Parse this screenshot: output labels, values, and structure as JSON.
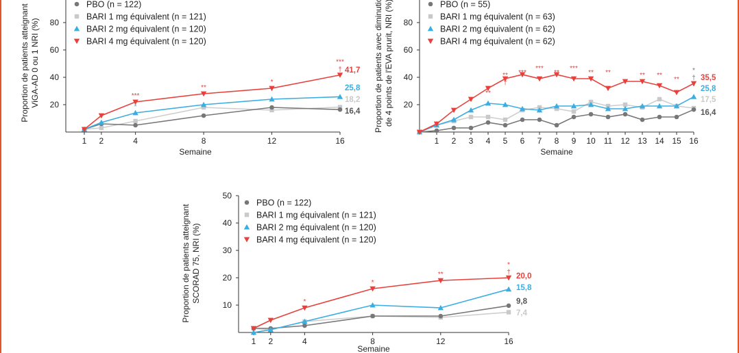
{
  "colors": {
    "pbo": "#777777",
    "bari1": "#c9c9c9",
    "bari2": "#3aaee3",
    "bari4": "#e8413c",
    "frame": "#e2572a"
  },
  "chart_data": [
    {
      "type": "line",
      "ylabel_lines": [
        "Proportion de patients atteignant",
        "ViGA-AD 0 ou 1 NRI (%)"
      ],
      "xlabel": "Semaine",
      "ylim": [
        0,
        100
      ],
      "yticks": [
        20,
        40,
        60,
        80,
        100
      ],
      "yticks_shown": [
        "20",
        "40",
        "60",
        "80"
      ],
      "xticks": [
        1,
        2,
        4,
        8,
        12,
        16
      ],
      "series": [
        {
          "name": "PBO (n = 122)",
          "x": [
            1,
            2,
            4,
            8,
            12,
            16
          ],
          "values": [
            2,
            6,
            5,
            12,
            18,
            16.4
          ],
          "end_label": "16,4"
        },
        {
          "name": "BARI 1 mg équivalent (n = 121)",
          "x": [
            1,
            2,
            4,
            8,
            12,
            16
          ],
          "values": [
            2,
            3,
            8,
            18,
            16,
            18.2
          ],
          "end_label": "18,2"
        },
        {
          "name": "BARI 2 mg équivalent (n = 120)",
          "x": [
            1,
            2,
            4,
            8,
            12,
            16
          ],
          "values": [
            2,
            7,
            14,
            20,
            24,
            25.8
          ],
          "end_label": "25,8"
        },
        {
          "name": "BARI 4 mg équivalent (n = 120)",
          "x": [
            1,
            2,
            4,
            8,
            12,
            16
          ],
          "values": [
            2,
            12,
            22,
            28,
            32,
            41.7
          ],
          "end_label": "41,7"
        }
      ],
      "annotations": [
        {
          "x": 4,
          "y": 22,
          "text": "***",
          "series": "bari4"
        },
        {
          "x": 4,
          "y": 14,
          "text": "*",
          "series": "bari2"
        },
        {
          "x": 8,
          "y": 28,
          "text": "**",
          "series": "bari4"
        },
        {
          "x": 12,
          "y": 32,
          "text": "*",
          "series": "bari4"
        },
        {
          "x": 16,
          "y": 41.7,
          "text": "***",
          "series": "bari4",
          "dagger": true
        }
      ]
    },
    {
      "type": "line",
      "ylabel_lines": [
        "Proportion de patients avec diminution",
        "de 4 points de l'EVA prurit, NRI (%)"
      ],
      "xlabel": "Semaine",
      "ylim": [
        0,
        100
      ],
      "yticks": [
        20,
        40,
        60,
        80,
        100
      ],
      "yticks_shown": [
        "20",
        "40",
        "60",
        "80"
      ],
      "xticks": [
        1,
        2,
        3,
        4,
        5,
        6,
        7,
        8,
        9,
        10,
        11,
        12,
        13,
        14,
        15,
        16
      ],
      "series": [
        {
          "name": "PBO (n = 55)",
          "x": [
            0,
            1,
            2,
            3,
            4,
            5,
            6,
            7,
            8,
            9,
            10,
            11,
            12,
            13,
            14,
            15,
            16
          ],
          "values": [
            0,
            1,
            3,
            3,
            7,
            5,
            9,
            9,
            5,
            11,
            13,
            11,
            13,
            9,
            11,
            11,
            16.4
          ],
          "end_label": "16,4"
        },
        {
          "name": "BARI 1 mg équivalent (n = 63)",
          "x": [
            0,
            1,
            2,
            3,
            4,
            5,
            6,
            7,
            8,
            9,
            10,
            11,
            12,
            13,
            14,
            15,
            16
          ],
          "values": [
            0,
            5,
            8,
            11,
            11,
            9,
            16,
            18,
            17,
            15,
            22,
            19,
            20,
            18,
            24,
            19,
            17.5
          ],
          "end_label": "17,5"
        },
        {
          "name": "BARI 2 mg équivalent (n = 62)",
          "x": [
            0,
            1,
            2,
            3,
            4,
            5,
            6,
            7,
            8,
            9,
            10,
            11,
            12,
            13,
            14,
            15,
            16
          ],
          "values": [
            0,
            5,
            9,
            16,
            21,
            20,
            17,
            16,
            19,
            19,
            20,
            17,
            17,
            19,
            19,
            19,
            25.8
          ],
          "end_label": "25,8"
        },
        {
          "name": "BARI 4 mg équivalent (n = 62)",
          "x": [
            0,
            1,
            2,
            3,
            4,
            5,
            6,
            7,
            8,
            9,
            10,
            11,
            12,
            13,
            14,
            15,
            16
          ],
          "values": [
            0,
            6,
            16,
            24,
            32,
            39,
            42,
            39,
            42,
            39,
            39,
            32,
            37,
            37,
            34,
            29,
            35.5
          ],
          "end_label": "35,5"
        }
      ],
      "annotations": [
        {
          "x": 4,
          "y": 24,
          "text": "**",
          "series": "bari4"
        },
        {
          "x": 5,
          "y": 32,
          "text": "**",
          "series": "bari4",
          "dagger": true
        },
        {
          "x": 6,
          "y": 39,
          "text": "***",
          "series": "bari4"
        },
        {
          "x": 7,
          "y": 42,
          "text": "***",
          "series": "bari4"
        },
        {
          "x": 8,
          "y": 39,
          "text": "**",
          "series": "bari4"
        },
        {
          "x": 9,
          "y": 42,
          "text": "***",
          "series": "bari4"
        },
        {
          "x": 10,
          "y": 39,
          "text": "**",
          "series": "bari4"
        },
        {
          "x": 11,
          "y": 39,
          "text": "**",
          "series": "bari4"
        },
        {
          "x": 12,
          "y": 32,
          "text": "*",
          "series": "bari4"
        },
        {
          "x": 13,
          "y": 37,
          "text": "**",
          "series": "bari4"
        },
        {
          "x": 14,
          "y": 37,
          "text": "**",
          "series": "bari4"
        },
        {
          "x": 15,
          "y": 34,
          "text": "**",
          "series": "bari4"
        },
        {
          "x": 16,
          "y": 29,
          "text": "*",
          "series": "bari4"
        },
        {
          "x": 16,
          "y": 35.5,
          "text": "*",
          "series": "pbo",
          "dagger": true
        }
      ]
    },
    {
      "type": "line",
      "ylabel_lines": [
        "Proportion de patients atteignant",
        "SCORAD 75, NRI (%)"
      ],
      "xlabel": "Semaine",
      "ylim": [
        0,
        50
      ],
      "yticks": [
        10,
        20,
        30,
        40,
        50
      ],
      "yticks_shown": [
        "10",
        "20",
        "30",
        "40",
        "50"
      ],
      "xticks": [
        1,
        2,
        4,
        8,
        12,
        16
      ],
      "series": [
        {
          "name": "PBO (n = 122)",
          "x": [
            1,
            2,
            4,
            8,
            12,
            16
          ],
          "values": [
            1.5,
            1.5,
            2.5,
            6,
            6,
            9.8
          ],
          "end_label": "9,8"
        },
        {
          "name": "BARI 1 mg équivalent (n = 121)",
          "x": [
            1,
            2,
            4,
            8,
            12,
            16
          ],
          "values": [
            1.5,
            1,
            4,
            6,
            5.5,
            7.4
          ],
          "end_label": "7,4"
        },
        {
          "name": "BARI 2 mg équivalent (n = 120)",
          "x": [
            1,
            2,
            4,
            8,
            12,
            16
          ],
          "values": [
            0,
            1,
            4,
            10,
            9,
            15.8
          ],
          "end_label": "15,8"
        },
        {
          "name": "BARI 4 mg équivalent (n = 120)",
          "x": [
            1,
            2,
            4,
            8,
            12,
            16
          ],
          "values": [
            1.5,
            4.5,
            9,
            16,
            19,
            20.0
          ],
          "end_label": "20,0"
        }
      ],
      "annotations": [
        {
          "x": 4,
          "y": 9,
          "text": "*",
          "series": "bari4"
        },
        {
          "x": 8,
          "y": 16,
          "text": "*",
          "series": "bari4"
        },
        {
          "x": 12,
          "y": 19,
          "text": "**",
          "series": "bari4"
        },
        {
          "x": 16,
          "y": 20,
          "text": "*",
          "series": "bari4",
          "dagger": true
        }
      ]
    }
  ]
}
